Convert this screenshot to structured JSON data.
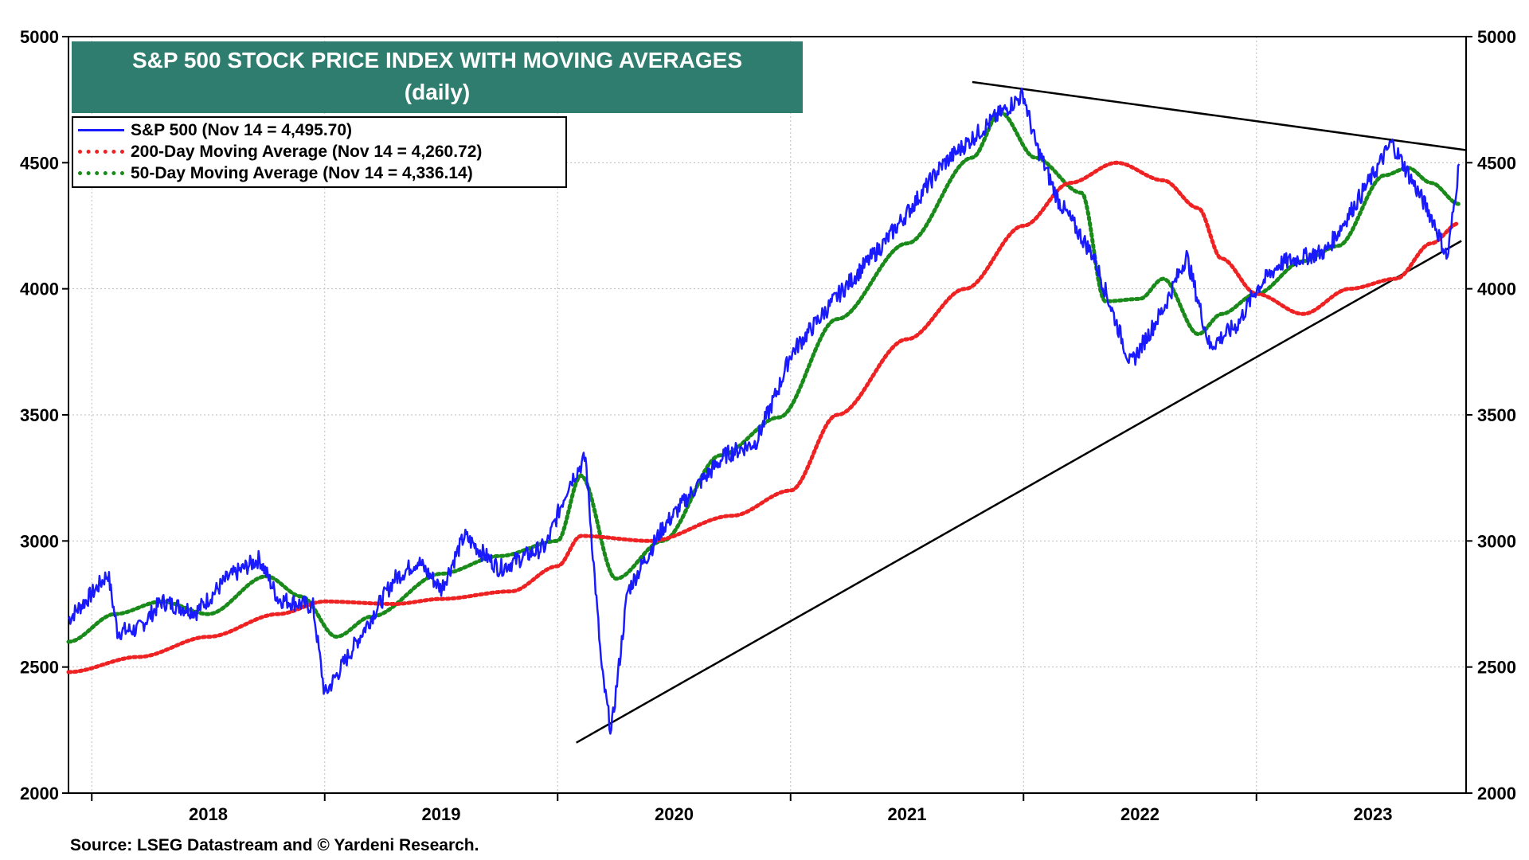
{
  "chart_data": {
    "type": "line",
    "title": "S&P 500 STOCK PRICE INDEX WITH MOVING AVERAGES",
    "subtitle": "(daily)",
    "ylim": [
      2000,
      5000
    ],
    "y_ticks": [
      2000,
      2500,
      3000,
      3500,
      4000,
      4500,
      5000
    ],
    "y_tick_labels": [
      "2000",
      "2500",
      "3000",
      "3500",
      "4000",
      "4500",
      "5000"
    ],
    "x_range": [
      2017.9,
      2023.9
    ],
    "x_tick_labels": [
      "2018",
      "2019",
      "2020",
      "2021",
      "2022",
      "2023"
    ],
    "grid": true,
    "legend": [
      {
        "label": "S&P 500 (Nov 14 = 4,495.70)",
        "color": "#1a1aff",
        "style": "solid"
      },
      {
        "label": "200-Day Moving Average (Nov 14 = 4,260.72)",
        "color": "#ee2222",
        "style": "dotted"
      },
      {
        "label": "50-Day Moving Average (Nov 14 = 4,336.14)",
        "color": "#1a8a1a",
        "style": "dotted"
      }
    ],
    "series": [
      {
        "name": "S&P 500",
        "x": [
          2017.9,
          2018.0,
          2018.07,
          2018.11,
          2018.2,
          2018.3,
          2018.45,
          2018.58,
          2018.72,
          2018.8,
          2018.95,
          2019.0,
          2019.15,
          2019.3,
          2019.4,
          2019.5,
          2019.6,
          2019.75,
          2019.95,
          2020.05,
          2020.12,
          2020.19,
          2020.23,
          2020.3,
          2020.45,
          2020.6,
          2020.72,
          2020.85,
          2020.95,
          2021.0,
          2021.2,
          2021.4,
          2021.5,
          2021.65,
          2021.88,
          2022.0,
          2022.05,
          2022.15,
          2022.3,
          2022.46,
          2022.6,
          2022.7,
          2022.8,
          2022.92,
          2023.0,
          2023.1,
          2023.3,
          2023.5,
          2023.58,
          2023.76,
          2023.82,
          2023.87
        ],
        "values": [
          2690,
          2790,
          2870,
          2640,
          2650,
          2760,
          2720,
          2850,
          2930,
          2770,
          2740,
          2390,
          2620,
          2850,
          2920,
          2810,
          3020,
          2890,
          2980,
          3230,
          3330,
          2480,
          2240,
          2800,
          3050,
          3220,
          3340,
          3390,
          3610,
          3740,
          3970,
          4180,
          4300,
          4490,
          4680,
          4770,
          4580,
          4350,
          4130,
          3700,
          3920,
          4130,
          3770,
          3860,
          4000,
          4100,
          4150,
          4450,
          4580,
          4270,
          4120,
          4495
        ]
      },
      {
        "name": "200-Day Moving Average",
        "x": [
          2017.9,
          2018.2,
          2018.5,
          2018.8,
          2019.0,
          2019.3,
          2019.5,
          2019.8,
          2020.0,
          2020.1,
          2020.4,
          2020.75,
          2021.0,
          2021.2,
          2021.5,
          2021.75,
          2022.0,
          2022.2,
          2022.4,
          2022.6,
          2022.75,
          2022.85,
          2023.0,
          2023.2,
          2023.4,
          2023.6,
          2023.75,
          2023.87
        ],
        "values": [
          2480,
          2540,
          2620,
          2710,
          2760,
          2750,
          2770,
          2800,
          2900,
          3020,
          3000,
          3100,
          3200,
          3500,
          3800,
          4000,
          4250,
          4420,
          4500,
          4430,
          4320,
          4120,
          3980,
          3900,
          4000,
          4040,
          4180,
          4260
        ]
      },
      {
        "name": "50-Day Moving Average",
        "x": [
          2017.9,
          2018.1,
          2018.3,
          2018.5,
          2018.75,
          2018.9,
          2019.05,
          2019.2,
          2019.5,
          2019.75,
          2020.0,
          2020.1,
          2020.25,
          2020.45,
          2020.7,
          2020.95,
          2021.2,
          2021.5,
          2021.78,
          2021.9,
          2022.05,
          2022.25,
          2022.35,
          2022.5,
          2022.6,
          2022.75,
          2022.85,
          2023.0,
          2023.2,
          2023.35,
          2023.55,
          2023.65,
          2023.75,
          2023.87
        ],
        "values": [
          2600,
          2710,
          2760,
          2710,
          2860,
          2780,
          2620,
          2700,
          2870,
          2940,
          3000,
          3260,
          2850,
          3000,
          3340,
          3490,
          3880,
          4180,
          4520,
          4700,
          4520,
          4380,
          3950,
          3960,
          4040,
          3820,
          3900,
          3980,
          4110,
          4170,
          4450,
          4480,
          4420,
          4336
        ]
      }
    ],
    "trendlines": [
      {
        "name": "upper-resistance-line",
        "x": [
          2021.78,
          2023.9
        ],
        "values": [
          4820,
          4550
        ]
      },
      {
        "name": "lower-support-line",
        "x": [
          2020.08,
          2023.88
        ],
        "values": [
          2200,
          4190
        ]
      }
    ]
  },
  "source": "Source: LSEG Datastream and © Yardeni Research."
}
